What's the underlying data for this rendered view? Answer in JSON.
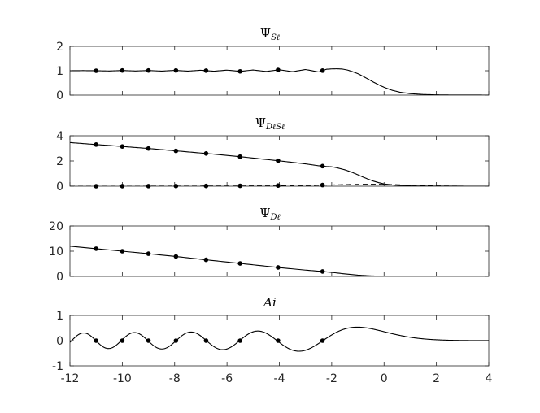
{
  "chart_data": [
    {
      "type": "line",
      "title": "Ψ",
      "title_subscript": "Sℓ",
      "xlim": [
        -12,
        4
      ],
      "ylim": [
        0,
        2
      ],
      "yticks": [
        0,
        1,
        2
      ],
      "xticks": [
        -12,
        -10,
        -8,
        -6,
        -4,
        -2,
        0,
        2,
        4
      ],
      "show_xtick_labels": false,
      "grid": false,
      "markers_x": [
        -11.0,
        -10.0,
        -9.0,
        -7.95,
        -6.8,
        -5.5,
        -4.05,
        -2.35
      ],
      "series": [
        {
          "style": "solid",
          "x": [
            -12,
            -11.5,
            -11,
            -10.5,
            -10,
            -9.5,
            -9,
            -8.5,
            -8,
            -7.5,
            -7,
            -6.5,
            -6,
            -5.5,
            -5,
            -4.5,
            -4,
            -3.5,
            -3,
            -2.5,
            -2.2,
            -2,
            -1.8,
            -1.6,
            -1.4,
            -1.2,
            -1,
            -0.8,
            -0.6,
            -0.4,
            -0.2,
            0,
            0.3,
            0.6,
            1,
            1.5,
            2,
            2.5,
            3,
            3.5,
            4
          ],
          "values": [
            1.0,
            1.005,
            1.0,
            0.99,
            1.01,
            0.99,
            1.01,
            0.985,
            1.015,
            0.985,
            1.02,
            0.98,
            1.025,
            0.975,
            1.03,
            0.97,
            1.04,
            0.96,
            1.05,
            0.95,
            1.06,
            1.075,
            1.08,
            1.07,
            1.03,
            0.96,
            0.88,
            0.77,
            0.65,
            0.53,
            0.42,
            0.32,
            0.2,
            0.12,
            0.06,
            0.025,
            0.01,
            0.004,
            0.002,
            0.001,
            0.0
          ]
        }
      ]
    },
    {
      "type": "line",
      "title": "Ψ",
      "title_subscript": "DℓSℓ",
      "xlim": [
        -12,
        4
      ],
      "ylim": [
        0,
        4
      ],
      "yticks": [
        0,
        2,
        4
      ],
      "xticks": [
        -12,
        -10,
        -8,
        -6,
        -4,
        -2,
        0,
        2,
        4
      ],
      "show_xtick_labels": false,
      "grid": false,
      "markers_x": [
        -11.0,
        -10.0,
        -9.0,
        -7.95,
        -6.8,
        -5.5,
        -4.05,
        -2.35
      ],
      "series": [
        {
          "style": "solid",
          "x": [
            -12,
            -11.5,
            -11,
            -10.5,
            -10,
            -9.5,
            -9,
            -8.5,
            -8,
            -7.5,
            -7,
            -6.5,
            -6,
            -5.5,
            -5,
            -4.5,
            -4,
            -3.5,
            -3,
            -2.5,
            -2.2,
            -2,
            -1.8,
            -1.5,
            -1.2,
            -1,
            -0.8,
            -0.6,
            -0.4,
            -0.2,
            0,
            0.3,
            0.6,
            1,
            1.5,
            2,
            2.5,
            3,
            3.5,
            4
          ],
          "values": [
            3.46,
            3.38,
            3.3,
            3.23,
            3.15,
            3.07,
            2.99,
            2.9,
            2.81,
            2.72,
            2.63,
            2.54,
            2.44,
            2.34,
            2.23,
            2.12,
            2.01,
            1.89,
            1.77,
            1.62,
            1.56,
            1.54,
            1.46,
            1.3,
            1.08,
            0.9,
            0.72,
            0.55,
            0.4,
            0.28,
            0.18,
            0.1,
            0.055,
            0.025,
            0.01,
            0.004,
            0.002,
            0.001,
            0.0,
            0.0
          ]
        },
        {
          "style": "dashed",
          "x": [
            -12,
            -10,
            -8,
            -6,
            -4,
            -3,
            -2.3,
            -2,
            -1.5,
            -1,
            -0.5,
            0,
            0.5,
            1,
            1.5,
            2,
            2.5,
            3,
            4
          ],
          "values": [
            0.0,
            0.005,
            0.01,
            0.02,
            0.03,
            0.05,
            0.08,
            0.1,
            0.13,
            0.15,
            0.16,
            0.15,
            0.12,
            0.08,
            0.05,
            0.03,
            0.015,
            0.005,
            0.0
          ]
        }
      ],
      "markers_dashed_x": [
        -11.0,
        -10.0,
        -9.0,
        -7.95,
        -6.8,
        -5.5,
        -4.05,
        -2.35
      ],
      "markers_dashed_y": [
        0.0,
        0.005,
        0.008,
        0.012,
        0.02,
        0.03,
        0.05,
        0.09
      ]
    },
    {
      "type": "line",
      "title": "Ψ",
      "title_subscript": "Dℓ",
      "xlim": [
        -12,
        4
      ],
      "ylim": [
        0,
        20
      ],
      "yticks": [
        0,
        10,
        20
      ],
      "xticks": [
        -12,
        -10,
        -8,
        -6,
        -4,
        -2,
        0,
        2,
        4
      ],
      "show_xtick_labels": false,
      "grid": false,
      "markers_x": [
        -11.0,
        -10.0,
        -9.0,
        -7.95,
        -6.8,
        -5.5,
        -4.05,
        -2.35
      ],
      "series": [
        {
          "style": "solid",
          "x": [
            -12,
            -11,
            -10,
            -9,
            -8,
            -7,
            -6,
            -5,
            -4,
            -3,
            -2.35,
            -2,
            -1.5,
            -1,
            -0.5,
            0,
            0.5,
            1,
            2,
            3,
            4
          ],
          "values": [
            12.0,
            11.0,
            10.0,
            9.0,
            7.95,
            6.8,
            5.7,
            4.6,
            3.5,
            2.5,
            1.95,
            1.6,
            1.0,
            0.5,
            0.2,
            0.05,
            0.01,
            0.0,
            0.0,
            0.0,
            0.0
          ]
        }
      ]
    },
    {
      "type": "line",
      "title": "Ai",
      "xlim": [
        -12,
        4
      ],
      "ylim": [
        -1,
        1
      ],
      "yticks": [
        -1,
        0,
        1
      ],
      "xticks": [
        -12,
        -10,
        -8,
        -6,
        -4,
        -2,
        0,
        2,
        4
      ],
      "xtick_labels": [
        "-12",
        "-10",
        "-8",
        "-6",
        "-4",
        "-2",
        "0",
        "2",
        "4"
      ],
      "show_xtick_labels": true,
      "grid": false,
      "markers_x": [
        -11.0,
        -10.0,
        -9.0,
        -7.95,
        -6.8,
        -5.5,
        -4.05,
        -2.35
      ],
      "series": [
        {
          "style": "solid",
          "function": "airy_ai"
        }
      ]
    }
  ]
}
